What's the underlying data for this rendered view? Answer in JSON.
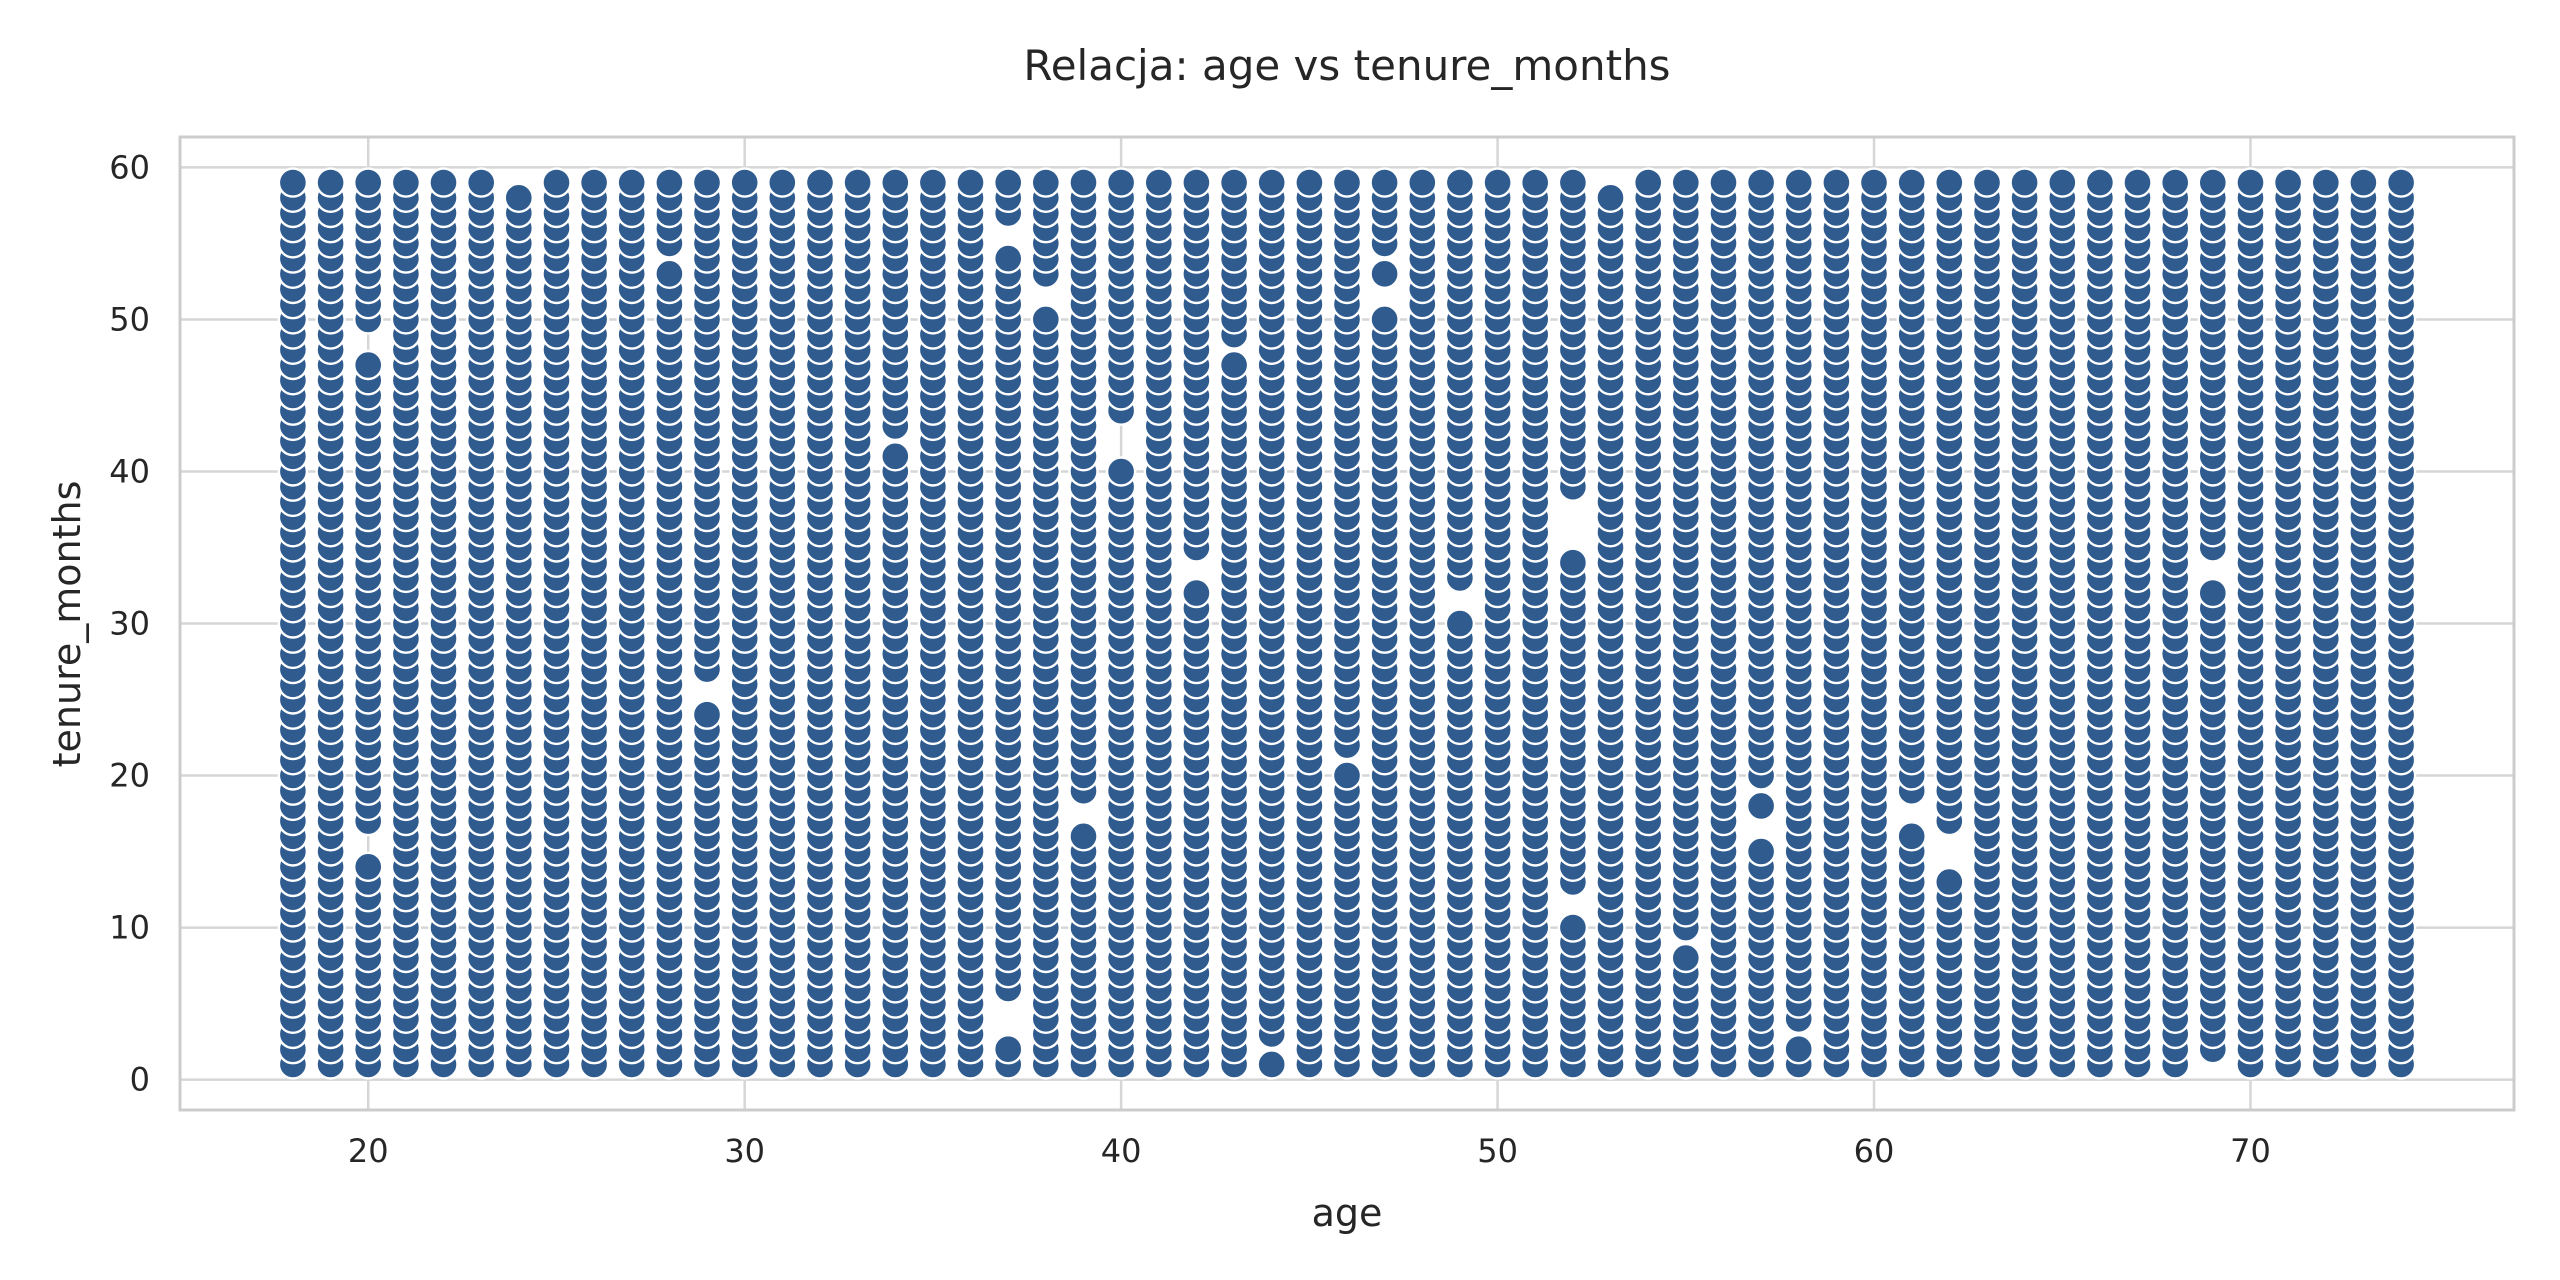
{
  "chart_data": {
    "type": "scatter",
    "title": "Relacja: age vs tenure_months",
    "xlabel": "age",
    "ylabel": "tenure_months",
    "xlim": [
      15,
      77
    ],
    "ylim": [
      -2,
      62
    ],
    "xticks": [
      20,
      30,
      40,
      50,
      60,
      70
    ],
    "yticks": [
      0,
      10,
      20,
      30,
      40,
      50,
      60
    ],
    "grid": true,
    "legend": "none",
    "color": "#2f5b8f",
    "series": [
      {
        "x_range": [
          18,
          74
        ],
        "y_range": [
          1,
          59
        ],
        "missing": {
          "20": [
            15,
            16,
            48,
            49
          ],
          "24": [
            59
          ],
          "28": [
            54
          ],
          "29": [
            25,
            26
          ],
          "34": [
            42
          ],
          "37": [
            3,
            4,
            5,
            55,
            56
          ],
          "38": [
            51,
            52
          ],
          "39": [
            17,
            18
          ],
          "40": [
            41,
            42,
            43
          ],
          "42": [
            33,
            34
          ],
          "43": [
            48
          ],
          "44": [
            2
          ],
          "46": [
            21
          ],
          "47": [
            51,
            52,
            54
          ],
          "49": [
            31,
            32
          ],
          "52": [
            11,
            12,
            35,
            36,
            37,
            38
          ],
          "53": [
            59
          ],
          "55": [
            9
          ],
          "57": [
            16,
            17,
            19
          ],
          "58": [
            3
          ],
          "61": [
            17,
            18
          ],
          "62": [
            14,
            15,
            16
          ],
          "69": [
            1,
            33,
            34
          ]
        }
      }
    ]
  }
}
